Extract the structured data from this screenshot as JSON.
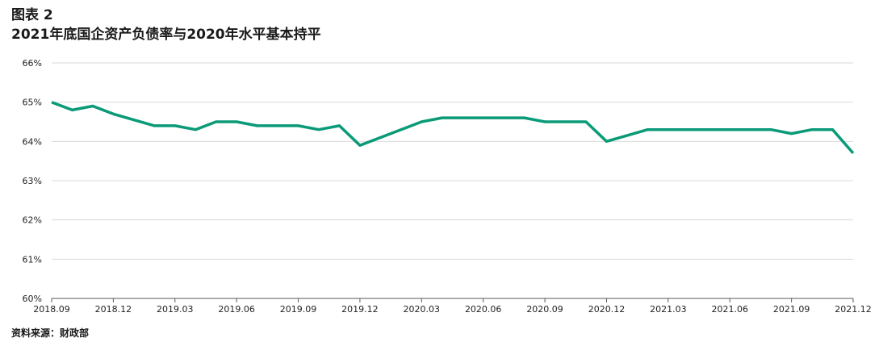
{
  "figure": {
    "number": "图表 2",
    "title": "2021年底国企资产负债率与2020年水平基本持平",
    "source": "资料来源：财政部"
  },
  "colors": {
    "line": "#0a9a77",
    "grid": "#d9d9d9",
    "axis": "#595959"
  },
  "chart_data": {
    "type": "line",
    "title": "2021年底国企资产负债率与2020年水平基本持平",
    "xlabel": "",
    "ylabel": "",
    "ylim": [
      60,
      66
    ],
    "y_ticks": [
      "60%",
      "61%",
      "62%",
      "63%",
      "64%",
      "65%",
      "66%"
    ],
    "x_tick_labels": [
      "2018.09",
      "2018.12",
      "2019.03",
      "2019.06",
      "2019.09",
      "2019.12",
      "2020.03",
      "2020.06",
      "2020.09",
      "2020.12",
      "2021.03",
      "2021.06",
      "2021.09",
      "2021.12"
    ],
    "grid": true,
    "legend": "none",
    "x": [
      "2018.09",
      "2018.10",
      "2018.11",
      "2018.12",
      "2019.02",
      "2019.03",
      "2019.04",
      "2019.05",
      "2019.06",
      "2019.07",
      "2019.08",
      "2019.09",
      "2019.10",
      "2019.11",
      "2019.12",
      "2020.03",
      "2020.04",
      "2020.05",
      "2020.06",
      "2020.07",
      "2020.08",
      "2020.09",
      "2020.10",
      "2020.11",
      "2020.12",
      "2021.02",
      "2021.03",
      "2021.04",
      "2021.05",
      "2021.06",
      "2021.07",
      "2021.08",
      "2021.09",
      "2021.10",
      "2021.11",
      "2021.12"
    ],
    "series": [
      {
        "values": [
          65.0,
          64.8,
          64.9,
          64.7,
          64.4,
          64.4,
          64.3,
          64.5,
          64.5,
          64.4,
          64.4,
          64.4,
          64.3,
          64.4,
          63.9,
          64.5,
          64.6,
          64.6,
          64.6,
          64.6,
          64.6,
          64.5,
          64.5,
          64.5,
          64.0,
          64.3,
          64.3,
          64.3,
          64.3,
          64.3,
          64.3,
          64.3,
          64.2,
          64.3,
          64.3,
          63.7
        ]
      }
    ]
  }
}
